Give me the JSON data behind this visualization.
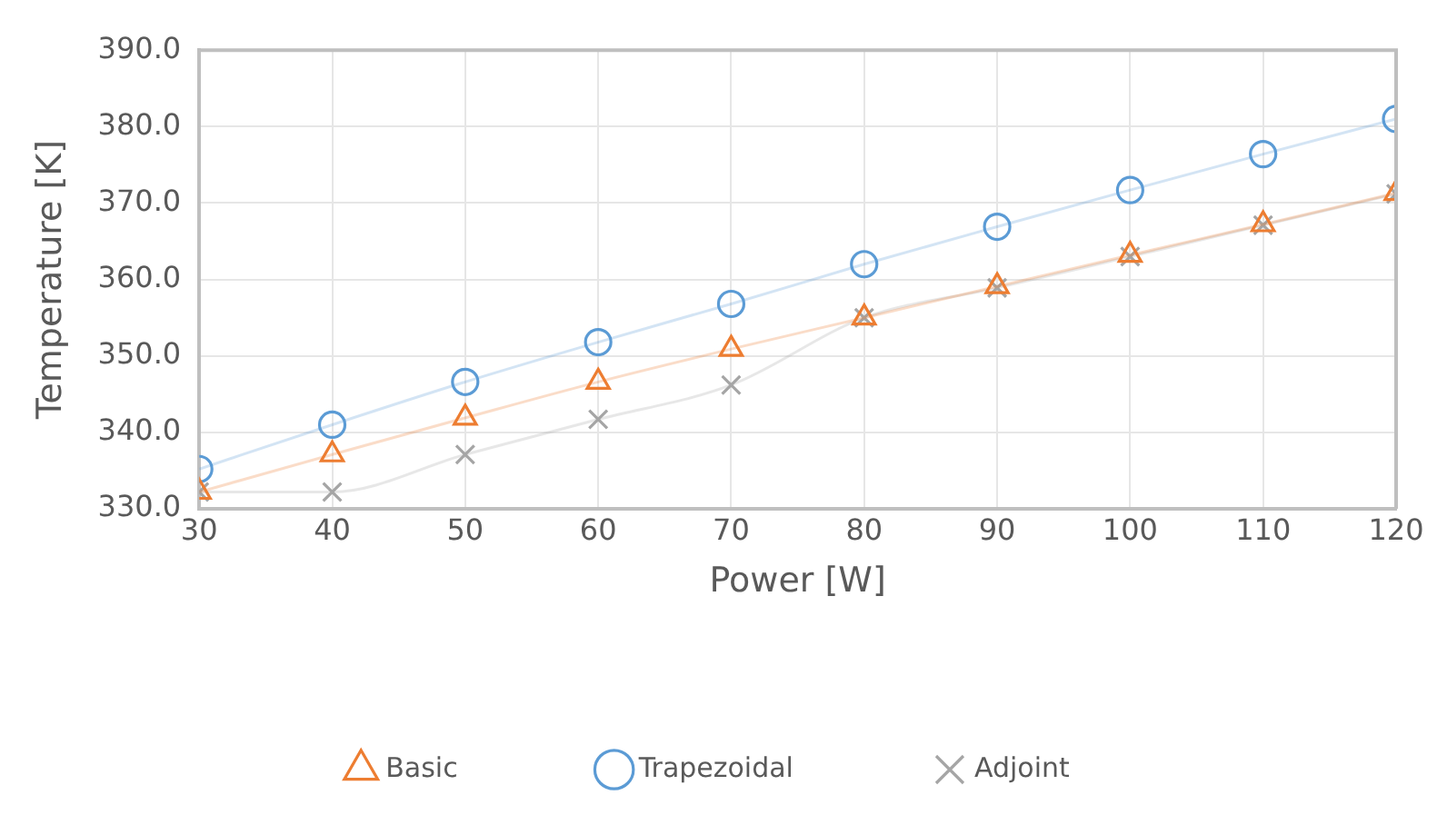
{
  "chart_data": {
    "type": "line",
    "xlabel": "Power [W]",
    "ylabel": "Temperature [K]",
    "x": [
      30,
      40,
      50,
      60,
      70,
      80,
      90,
      100,
      110,
      120
    ],
    "xlim": [
      30,
      120
    ],
    "xticks": [
      30,
      40,
      50,
      60,
      70,
      80,
      90,
      100,
      110,
      120
    ],
    "ylim": [
      330,
      390
    ],
    "yticks": [
      {
        "value": 330,
        "label": "330.0"
      },
      {
        "value": 340,
        "label": "340.0"
      },
      {
        "value": 350,
        "label": "350.0"
      },
      {
        "value": 360,
        "label": "360.0"
      },
      {
        "value": 370,
        "label": "370.0"
      },
      {
        "value": 380,
        "label": "380.0"
      },
      {
        "value": 390,
        "label": "390.0"
      }
    ],
    "grid": true,
    "legend": "bottom",
    "series": [
      {
        "name": "Basic",
        "color": "#ed7d31",
        "marker": "triangle",
        "values": [
          332.2,
          337.1,
          341.9,
          346.6,
          350.9,
          355.0,
          359.1,
          363.2,
          367.2,
          371.3
        ]
      },
      {
        "name": "Trapezoidal",
        "color": "#5b9bd5",
        "marker": "circle",
        "values": [
          335.2,
          341.0,
          346.6,
          351.8,
          356.8,
          362.0,
          366.9,
          371.7,
          376.4,
          381.0
        ]
      },
      {
        "name": "Adjoint",
        "color": "#a5a5a5",
        "marker": "cross",
        "values": [
          332.2,
          332.2,
          337.1,
          341.7,
          346.2,
          355.0,
          358.9,
          363.0,
          367.1,
          371.2
        ]
      }
    ]
  }
}
